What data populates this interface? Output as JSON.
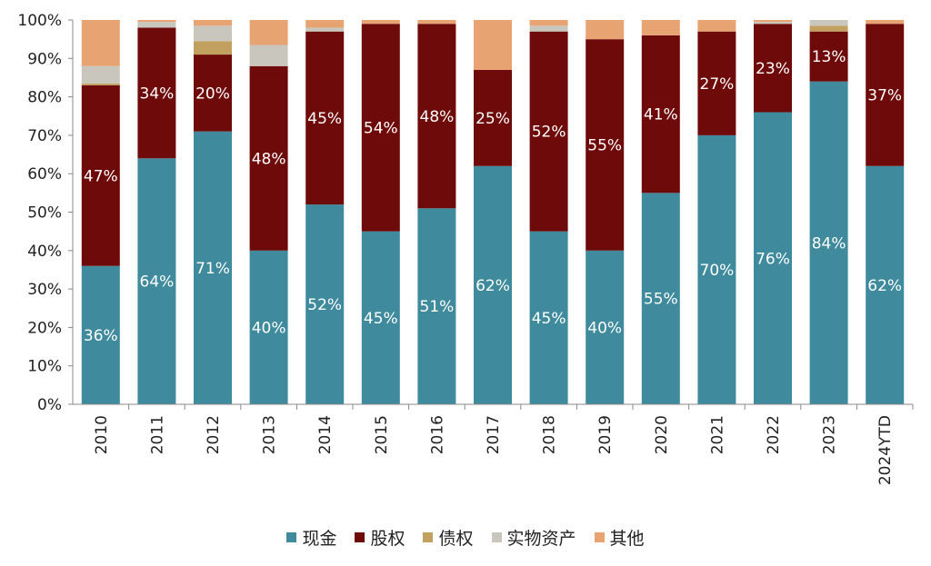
{
  "chart_data": {
    "type": "bar",
    "stacked": true,
    "categories": [
      "2010",
      "2011",
      "2012",
      "2013",
      "2014",
      "2015",
      "2016",
      "2017",
      "2018",
      "2019",
      "2020",
      "2021",
      "2022",
      "2023",
      "2024YTD"
    ],
    "series": [
      {
        "name": "现金",
        "color": "#3f8a9c",
        "values": [
          36,
          64,
          71,
          40,
          52,
          45,
          51,
          62,
          45,
          40,
          55,
          70,
          76,
          84,
          62
        ],
        "labels": [
          "36%",
          "64%",
          "71%",
          "40%",
          "52%",
          "45%",
          "51%",
          "62%",
          "45%",
          "40%",
          "55%",
          "70%",
          "76%",
          "84%",
          "62%"
        ]
      },
      {
        "name": "股权",
        "color": "#6e0a0a",
        "values": [
          47,
          34,
          20,
          48,
          45,
          54,
          48,
          25,
          52,
          55,
          41,
          27,
          23,
          13,
          37
        ],
        "labels": [
          "47%",
          "34%",
          "20%",
          "48%",
          "45%",
          "54%",
          "48%",
          "25%",
          "52%",
          "55%",
          "41%",
          "27%",
          "23%",
          "13%",
          "37%"
        ]
      },
      {
        "name": "债权",
        "color": "#c2a060",
        "values": [
          0.5,
          0,
          3.5,
          0,
          0,
          0,
          0,
          0,
          0,
          0,
          0,
          0,
          0,
          1.5,
          0
        ]
      },
      {
        "name": "实物资产",
        "color": "#c8c6bd",
        "values": [
          4.5,
          1.5,
          4,
          5.5,
          1,
          0,
          0,
          0,
          1.5,
          0,
          0,
          0,
          0.5,
          1.5,
          0
        ]
      },
      {
        "name": "其他",
        "color": "#e8a373",
        "values": [
          12,
          0.5,
          1.5,
          6.5,
          2,
          1,
          1,
          13,
          1.5,
          5,
          4,
          3,
          0.5,
          0,
          1
        ]
      }
    ],
    "ylim": [
      0,
      100
    ],
    "yticks": [
      "0%",
      "10%",
      "20%",
      "30%",
      "40%",
      "50%",
      "60%",
      "70%",
      "80%",
      "90%",
      "100%"
    ],
    "legend_position": "bottom",
    "grid": false
  }
}
